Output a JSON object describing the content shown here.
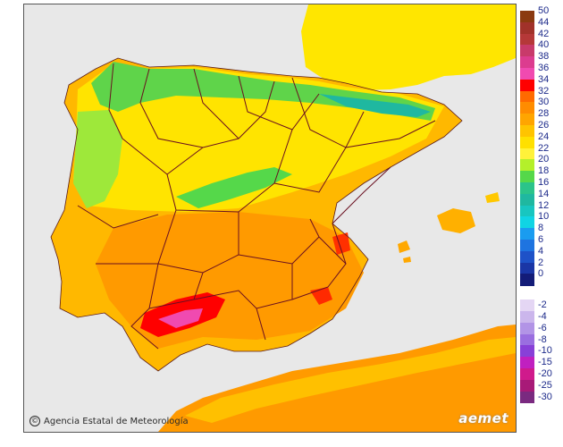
{
  "credit": {
    "symbol": "©",
    "text": "Agencia Estatal de Meteorología"
  },
  "logo": {
    "text": "aemet"
  },
  "legend": {
    "upper": [
      {
        "label": "50",
        "color": "#8b3a10"
      },
      {
        "label": "44",
        "color": "#a1322a"
      },
      {
        "label": "42",
        "color": "#b53838"
      },
      {
        "label": "40",
        "color": "#c83a6a"
      },
      {
        "label": "38",
        "color": "#dc3c8f"
      },
      {
        "label": "36",
        "color": "#f04ab0"
      },
      {
        "label": "34",
        "color": "#ff0000"
      },
      {
        "label": "32",
        "color": "#ff6a00"
      },
      {
        "label": "30",
        "color": "#ff8c00"
      },
      {
        "label": "28",
        "color": "#ffa500"
      },
      {
        "label": "26",
        "color": "#ffc400"
      },
      {
        "label": "24",
        "color": "#ffe000"
      },
      {
        "label": "22",
        "color": "#fff23a"
      },
      {
        "label": "20",
        "color": "#b4f02a"
      },
      {
        "label": "18",
        "color": "#55d84a"
      },
      {
        "label": "16",
        "color": "#2bc48a"
      },
      {
        "label": "14",
        "color": "#1fb8a0"
      },
      {
        "label": "12",
        "color": "#18c6c0"
      },
      {
        "label": "10",
        "color": "#10d4e4"
      },
      {
        "label": "8",
        "color": "#1a9cf0"
      },
      {
        "label": "6",
        "color": "#1e74e0"
      },
      {
        "label": "4",
        "color": "#1e52c8"
      },
      {
        "label": "2",
        "color": "#1a36a6"
      },
      {
        "label": "0",
        "color": "#131c78"
      }
    ],
    "lower": [
      {
        "label": "-2",
        "color": "#e4d6f4"
      },
      {
        "label": "-4",
        "color": "#cbb6ec"
      },
      {
        "label": "-6",
        "color": "#b294e6"
      },
      {
        "label": "-8",
        "color": "#9a6ee0"
      },
      {
        "label": "-10",
        "color": "#8840d8"
      },
      {
        "label": "-15",
        "color": "#c020c0"
      },
      {
        "label": "-20",
        "color": "#d01a8c"
      },
      {
        "label": "-25",
        "color": "#a81a78"
      },
      {
        "label": "-30",
        "color": "#7a2a80"
      }
    ]
  }
}
